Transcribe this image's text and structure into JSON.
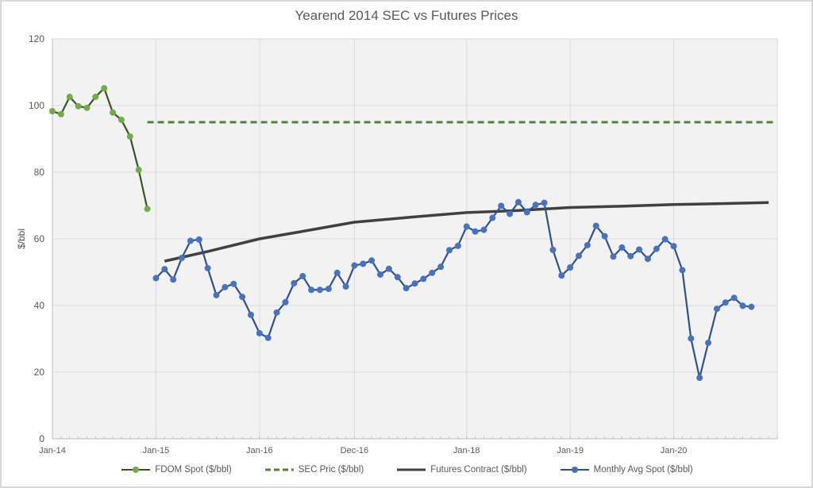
{
  "chart_data": {
    "type": "line",
    "title": "Yearend 2014 SEC vs Futures Prices",
    "xlabel": "",
    "ylabel": "$/bbl",
    "ylim": [
      0,
      120
    ],
    "yticks": [
      0,
      20,
      40,
      60,
      80,
      100,
      120
    ],
    "x_tick_labels": [
      "Jan-14",
      "Jan-15",
      "Jan-16",
      "Dec-16",
      "Jan-18",
      "Jan-19",
      "Jan-20"
    ],
    "x_tick_month_index": [
      0,
      12,
      24,
      35,
      48,
      60,
      72
    ],
    "x_month_range": [
      0,
      84
    ],
    "grid": true,
    "legend_position": "bottom",
    "series": [
      {
        "name": "FDOM Spot  ($/bbl)",
        "color_marker": "#70ad47",
        "color_line": "#375623",
        "style": "line-marker",
        "start_month": 0,
        "values": [
          98.3,
          97.4,
          102.6,
          99.8,
          99.3,
          102.6,
          105.2,
          97.9,
          95.7,
          90.7,
          80.7,
          69.0
        ]
      },
      {
        "name": "SEC Pric  ($/bbl)",
        "color_line": "#548235",
        "style": "dashed",
        "x_start_month": 11,
        "x_end_month": 83.7,
        "value": 95.0
      },
      {
        "name": "Futures Contract  ($/bbl)",
        "color_line": "#404040",
        "style": "solid",
        "points": [
          [
            13,
            53.3
          ],
          [
            18,
            56.2
          ],
          [
            24,
            60.0
          ],
          [
            30,
            62.7
          ],
          [
            35,
            65.0
          ],
          [
            42,
            66.6
          ],
          [
            48,
            67.9
          ],
          [
            54,
            68.5
          ],
          [
            60,
            69.4
          ],
          [
            66,
            69.8
          ],
          [
            72,
            70.3
          ],
          [
            78,
            70.6
          ],
          [
            83,
            70.9
          ]
        ]
      },
      {
        "name": "Monthly Avg Spot  ($/bbl)",
        "color_marker": "#4472c4",
        "color_line": "#2f4f8f",
        "style": "line-marker",
        "start_month": 12,
        "values": [
          48.2,
          50.9,
          47.8,
          54.3,
          59.4,
          59.8,
          51.2,
          43.1,
          45.5,
          46.5,
          42.6,
          37.2,
          31.7,
          30.3,
          37.9,
          41.0,
          46.7,
          48.8,
          44.7,
          44.7,
          45.0,
          49.8,
          45.7,
          52.0,
          52.5,
          53.5,
          49.3,
          51.0,
          48.5,
          45.2,
          46.6,
          48.0,
          49.8,
          51.6,
          56.6,
          57.9,
          63.7,
          62.2,
          62.7,
          66.3,
          69.9,
          67.5,
          71.0,
          68.0,
          70.2,
          70.8,
          56.7,
          49.0,
          51.4,
          54.9,
          58.1,
          63.9,
          60.8,
          54.7,
          57.4,
          54.8,
          56.8,
          54.0,
          57.0,
          59.9,
          57.8,
          50.6,
          30.1,
          18.3,
          28.8,
          39.0,
          40.9,
          42.3,
          39.9,
          39.6
        ]
      }
    ]
  },
  "legend": {
    "items": [
      {
        "label": "FDOM Spot  ($/bbl)"
      },
      {
        "label": "SEC Pric  ($/bbl)"
      },
      {
        "label": "Futures Contract  ($/bbl)"
      },
      {
        "label": "Monthly Avg Spot  ($/bbl)"
      }
    ]
  }
}
